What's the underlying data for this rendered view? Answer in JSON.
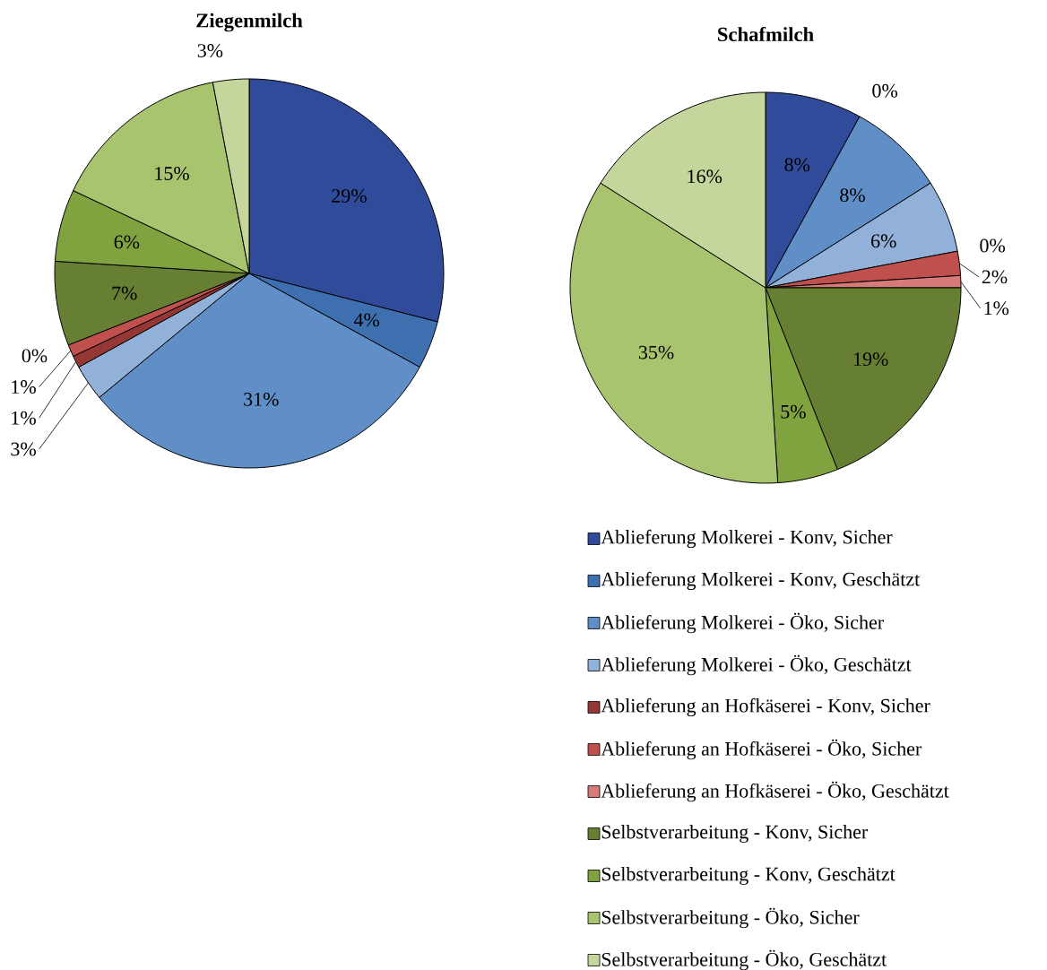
{
  "chart_data": [
    {
      "type": "pie",
      "title": "Ziegenmilch",
      "values": [
        29,
        4,
        31,
        3,
        1,
        1,
        0,
        7,
        6,
        15,
        3
      ],
      "value_labels": [
        "29%",
        "4%",
        "31%",
        "3%",
        "1%",
        "1%",
        "0%",
        "7%",
        "6%",
        "15%",
        "3%"
      ],
      "colors": [
        "#2f4b9a",
        "#3e70b0",
        "#608ec6",
        "#91b1d9",
        "#953735",
        "#c0504d",
        "#d8797a",
        "#667f33",
        "#80a23f",
        "#a9c46f",
        "#c4d69b"
      ]
    },
    {
      "type": "pie",
      "title": "Schafmilch",
      "categories": [
        "Ablieferung Molkerei - Konv, Sicher",
        "Ablieferung Molkerei - Konv, Geschätzt",
        "Ablieferung Molkerei - Öko, Sicher",
        "Ablieferung Molkerei - Öko, Geschätzt",
        "Ablieferung an Hofkäserei - Konv, Sicher",
        "Ablieferung an Hofkäserei - Öko, Sicher",
        "Ablieferung an Hofkäserei - Öko, Geschätzt",
        "Selbstverarbeitung - Konv, Sicher",
        "Selbstverarbeitung - Konv, Geschätzt",
        "Selbstverarbeitung - Öko, Sicher",
        "Selbstverarbeitung - Öko, Geschätzt"
      ],
      "values": [
        8,
        0,
        8,
        6,
        0,
        2,
        1,
        19,
        5,
        35,
        16
      ],
      "value_labels": [
        "8%",
        "0%",
        "8%",
        "6%",
        "0%",
        "2%",
        "1%",
        "19%",
        "5%",
        "35%",
        "16%"
      ],
      "colors": [
        "#2f4b9a",
        "#3e70b0",
        "#608ec6",
        "#91b1d9",
        "#953735",
        "#c0504d",
        "#d8797a",
        "#667f33",
        "#80a23f",
        "#a9c46f",
        "#c4d69b"
      ],
      "legend": "bottom"
    }
  ]
}
